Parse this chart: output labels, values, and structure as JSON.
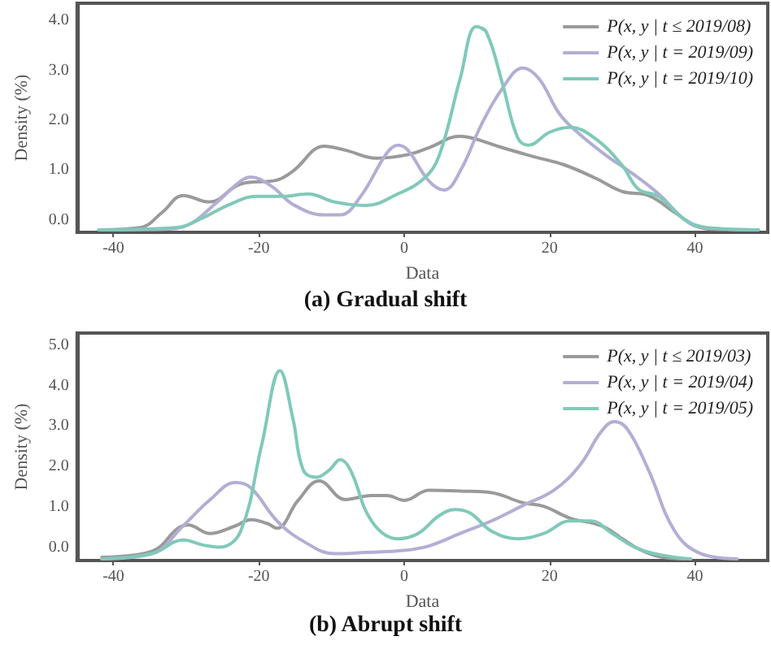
{
  "chart_data": [
    {
      "type": "line",
      "title": "(a) Gradual shift",
      "xlabel": "Data",
      "ylabel": "Density (%)",
      "legend": "top right",
      "grid": false,
      "marker": "none",
      "line_style": "solid",
      "xlim": [
        -45,
        50
      ],
      "xticks": [
        -40,
        -20,
        0,
        20,
        40
      ],
      "ylim": [
        -0.25,
        4.35
      ],
      "yticks": [
        {
          "value": 0,
          "label": "0.0"
        },
        {
          "value": 1,
          "label": "1.0"
        },
        {
          "value": 2,
          "label": "2.0"
        },
        {
          "value": 3,
          "label": "3.0"
        },
        {
          "value": 4,
          "label": "4.0"
        }
      ],
      "series": [
        {
          "name": "P(x, y | t ≤ 2019/08)",
          "color": "#9a9a9a",
          "x": [
            -42,
            -36.2,
            -33.3,
            -30.4,
            -26.8,
            -22.5,
            -17.5,
            -15.3,
            -11,
            -8.1,
            -3.8,
            0.5,
            3.4,
            7.7,
            9.9,
            13.5,
            17.8,
            22.1,
            26.4,
            30,
            33.6,
            37.2,
            40.1,
            42.2,
            48.7
          ],
          "values": [
            -0.2,
            -0.15,
            0.15,
            0.49,
            0.36,
            0.72,
            0.8,
            0.98,
            1.48,
            1.4,
            1.24,
            1.31,
            1.45,
            1.68,
            1.62,
            1.45,
            1.27,
            1.1,
            0.83,
            0.57,
            0.49,
            0.15,
            -0.12,
            -0.19,
            -0.2
          ]
        },
        {
          "name": "P(x, y | t = 2019/09)",
          "color": "#b3aed4",
          "x": [
            -42,
            -33.3,
            -29.7,
            -26.1,
            -22.5,
            -21.1,
            -18.2,
            -15.3,
            -11,
            -8.8,
            -6,
            -2.4,
            -0.9,
            0.5,
            3.4,
            5.5,
            7.7,
            10.6,
            13.5,
            16.3,
            18.5,
            21.4,
            24.2,
            27.8,
            31.4,
            35,
            38.6,
            40.8,
            48.7
          ],
          "values": [
            -0.2,
            -0.19,
            -0.1,
            0.31,
            0.78,
            0.86,
            0.67,
            0.31,
            0.1,
            0.1,
            0.47,
            1.34,
            1.5,
            1.4,
            0.78,
            0.6,
            0.98,
            1.91,
            2.64,
            3.05,
            2.84,
            2.12,
            1.71,
            1.29,
            0.93,
            0.52,
            0,
            -0.15,
            -0.2
          ]
        },
        {
          "name": "P(x, y | t = 2019/10)",
          "color": "#80c9b9",
          "x": [
            -42,
            -31.2,
            -27.6,
            -24,
            -20.4,
            -16.8,
            -13.2,
            -9.6,
            -5.3,
            -0.9,
            2.7,
            4.8,
            7.7,
            9.9,
            11.3,
            13.5,
            15.6,
            17.1,
            20,
            22.8,
            26.4,
            30,
            32.2,
            35,
            38.6,
            41.5,
            48.7
          ],
          "values": [
            -0.2,
            -0.15,
            0.05,
            0.31,
            0.47,
            0.47,
            0.52,
            0.36,
            0.29,
            0.52,
            0.83,
            1.29,
            2.84,
            3.88,
            3.77,
            2.74,
            1.65,
            1.5,
            1.76,
            1.86,
            1.62,
            1.09,
            0.62,
            0.47,
            0,
            -0.15,
            -0.2
          ]
        }
      ]
    },
    {
      "type": "line",
      "title": "(b) Abrupt shift",
      "xlabel": "Data",
      "ylabel": "Density (%)",
      "legend": "top right",
      "grid": false,
      "marker": "none",
      "line_style": "solid",
      "xlim": [
        -45,
        50
      ],
      "xticks": [
        -40,
        -20,
        0,
        20,
        40
      ],
      "ylim": [
        -0.33,
        5.3
      ],
      "yticks": [
        {
          "value": 0,
          "label": "0.0"
        },
        {
          "value": 1,
          "label": "1.0"
        },
        {
          "value": 2,
          "label": "2.0"
        },
        {
          "value": 3,
          "label": "3.0"
        },
        {
          "value": 4,
          "label": "4.0"
        },
        {
          "value": 5,
          "label": "5.0"
        }
      ],
      "series": [
        {
          "name": "P(x, y | t ≤ 2019/03)",
          "color": "#9a9a9a",
          "x": [
            -41.6,
            -34.7,
            -31.1,
            -29.7,
            -26.8,
            -23.2,
            -21.1,
            -18.9,
            -17.5,
            -14.6,
            -11.7,
            -8.1,
            -4.5,
            -2.4,
            0,
            3.4,
            7.7,
            12,
            16.3,
            19.2,
            22.8,
            27.1,
            30,
            32.2,
            35,
            38.6
          ],
          "values": [
            -0.25,
            -0.1,
            0.47,
            0.55,
            0.34,
            0.53,
            0.68,
            0.59,
            0.47,
            1.16,
            1.64,
            1.18,
            1.28,
            1.28,
            1.16,
            1.41,
            1.39,
            1.35,
            1.1,
            1.01,
            0.72,
            0.53,
            0.21,
            -0.04,
            -0.23,
            -0.29
          ]
        },
        {
          "name": "P(x, y | t = 2019/04)",
          "color": "#b3aed4",
          "x": [
            -41.6,
            -34.7,
            -30.4,
            -26.8,
            -23.2,
            -21.1,
            -17.5,
            -13.9,
            -9.6,
            -5.3,
            0,
            3.4,
            7.7,
            12,
            16.3,
            20.6,
            24.2,
            27.1,
            28.9,
            30.7,
            33.6,
            37.2,
            40.8,
            45.8
          ],
          "values": [
            -0.29,
            -0.16,
            0.53,
            1.16,
            1.6,
            1.47,
            0.65,
            0.15,
            -0.16,
            -0.13,
            -0.08,
            0.03,
            0.34,
            0.65,
            1.03,
            1.41,
            2.04,
            2.86,
            3.11,
            2.92,
            1.91,
            0.4,
            -0.16,
            -0.29
          ]
        },
        {
          "name": "P(x, y | t = 2019/05)",
          "color": "#80c9b9",
          "x": [
            -41.6,
            -34.7,
            -30.4,
            -27.6,
            -25.4,
            -22.5,
            -19.6,
            -17.1,
            -15.3,
            -13.9,
            -12.1,
            -10.3,
            -8.8,
            -7.4,
            -4.5,
            -0.9,
            1.9,
            4.8,
            7,
            9.1,
            12,
            15.6,
            19.2,
            22.8,
            25.7,
            28.6,
            32.2,
            36.5,
            39.4
          ],
          "values": [
            -0.29,
            -0.16,
            0.18,
            0.05,
            0,
            0.4,
            2.54,
            4.37,
            3.17,
            1.91,
            1.73,
            1.91,
            2.17,
            1.91,
            0.65,
            0.21,
            0.34,
            0.78,
            0.93,
            0.84,
            0.4,
            0.21,
            0.34,
            0.65,
            0.65,
            0.34,
            -0.04,
            -0.23,
            -0.29
          ]
        }
      ]
    }
  ]
}
